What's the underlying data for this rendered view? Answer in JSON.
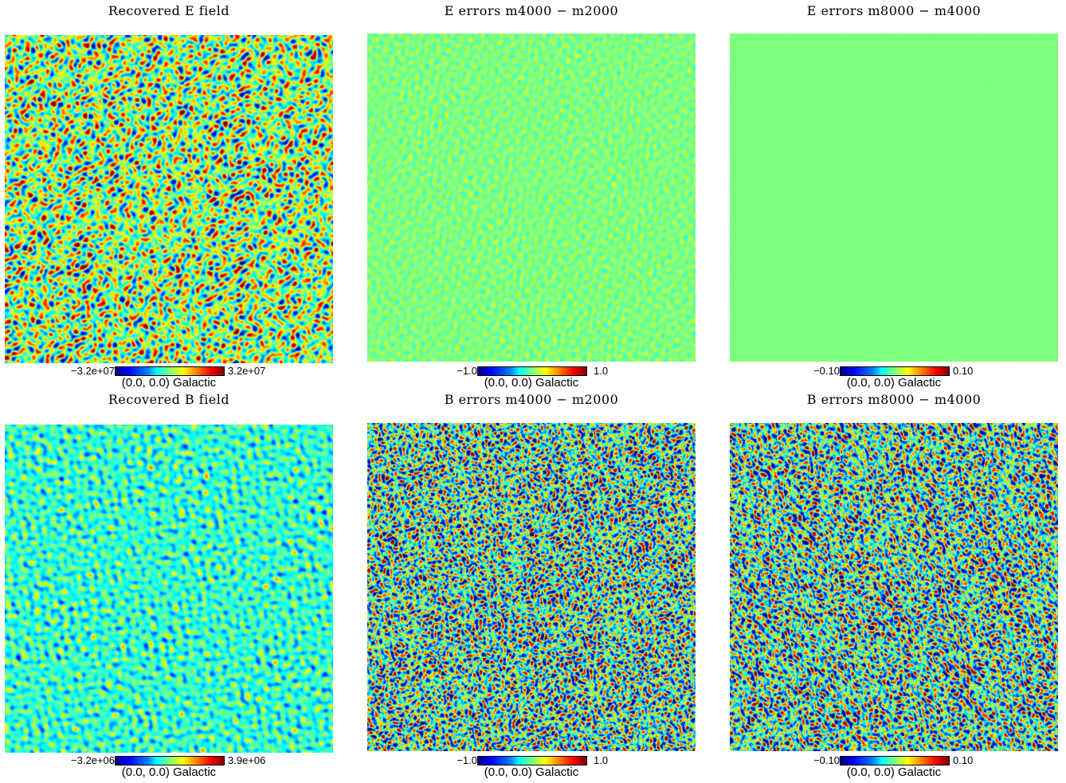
{
  "panels": [
    {
      "title": "Recovered E field",
      "cbar_min": "−3.2e+07",
      "cbar_max": "3.2e+07",
      "coord_label": "(0.0, 0.0) Galactic",
      "texture": "dense",
      "base_color": "#8cf57a"
    },
    {
      "title": "E errors m4000 − m2000",
      "cbar_min": "−1.0",
      "cbar_max": "1.0",
      "coord_label": "(0.0, 0.0) Galactic",
      "texture": "faint",
      "base_color": "#7fff7f"
    },
    {
      "title": "E errors m8000 − m4000",
      "cbar_min": "−0.10",
      "cbar_max": "0.10",
      "coord_label": "(0.0, 0.0) Galactic",
      "texture": "flat",
      "base_color": "#7dff7d"
    },
    {
      "title": "Recovered B field",
      "cbar_min": "−3.2e+06",
      "cbar_max": "3.9e+06",
      "coord_label": "(0.0, 0.0) Galactic",
      "texture": "sparse",
      "base_color": "#40f0c0"
    },
    {
      "title": "B errors m4000 − m2000",
      "cbar_min": "−1.0",
      "cbar_max": "1.0",
      "coord_label": "(0.0, 0.0) Galactic",
      "texture": "noisy",
      "base_color": "#60e8a0"
    },
    {
      "title": "B errors m8000 − m4000",
      "cbar_min": "−0.10",
      "cbar_max": "0.10",
      "coord_label": "(0.0, 0.0) Galactic",
      "texture": "noisy",
      "base_color": "#5ce0a8"
    }
  ]
}
